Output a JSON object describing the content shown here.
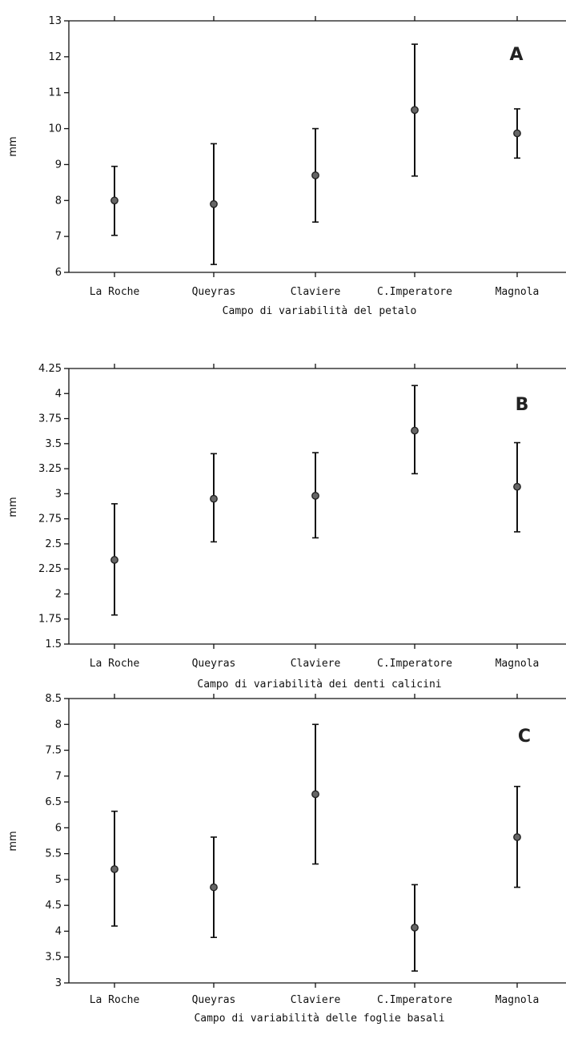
{
  "chart_data": [
    {
      "type": "errorbar",
      "panel_label": "A",
      "xlabel": "Campo di variabilità del petalo",
      "ylabel": "mm",
      "ylim": [
        6,
        13
      ],
      "yticks": [
        "6",
        "7",
        "8",
        "9",
        "10",
        "11",
        "12",
        "13"
      ],
      "categories": [
        "La Roche",
        "Queyras",
        "Claviere",
        "C.Imperatore",
        "Magnola"
      ],
      "points": [
        {
          "mean": 8.0,
          "low": 7.03,
          "high": 8.95
        },
        {
          "mean": 7.9,
          "low": 6.22,
          "high": 9.58
        },
        {
          "mean": 8.7,
          "low": 7.4,
          "high": 10.0
        },
        {
          "mean": 10.52,
          "low": 8.68,
          "high": 12.35
        },
        {
          "mean": 9.87,
          "low": 9.18,
          "high": 10.55
        }
      ]
    },
    {
      "type": "errorbar",
      "panel_label": "B",
      "xlabel": "Campo di variabilità dei denti calicini",
      "ylabel": "mm",
      "ylim": [
        1.5,
        4.25
      ],
      "yticks": [
        "1.5",
        "1.75",
        "2",
        "2.25",
        "2.5",
        "2.75",
        "3",
        "3.25",
        "3.5",
        "3.75",
        "4",
        "4.25"
      ],
      "categories": [
        "La Roche",
        "Queyras",
        "Claviere",
        "C.Imperatore",
        "Magnola"
      ],
      "points": [
        {
          "mean": 2.34,
          "low": 1.79,
          "high": 2.9
        },
        {
          "mean": 2.95,
          "low": 2.52,
          "high": 3.4
        },
        {
          "mean": 2.98,
          "low": 2.56,
          "high": 3.41
        },
        {
          "mean": 3.63,
          "low": 3.2,
          "high": 4.08
        },
        {
          "mean": 3.07,
          "low": 2.62,
          "high": 3.51
        }
      ]
    },
    {
      "type": "errorbar",
      "panel_label": "C",
      "xlabel": "Campo di variabilità delle foglie basali",
      "ylabel": "mm",
      "ylim": [
        3,
        8.5
      ],
      "yticks": [
        "3",
        "3.5",
        "4",
        "4.5",
        "5",
        "5.5",
        "6",
        "6.5",
        "7",
        "7.5",
        "8",
        "8.5"
      ],
      "categories": [
        "La Roche",
        "Queyras",
        "Claviere",
        "C.Imperatore",
        "Magnola"
      ],
      "points": [
        {
          "mean": 5.2,
          "low": 4.1,
          "high": 6.32
        },
        {
          "mean": 4.85,
          "low": 3.88,
          "high": 5.82
        },
        {
          "mean": 6.65,
          "low": 5.3,
          "high": 8.0
        },
        {
          "mean": 4.07,
          "low": 3.23,
          "high": 4.9
        },
        {
          "mean": 5.82,
          "low": 4.85,
          "high": 6.8
        }
      ]
    }
  ]
}
